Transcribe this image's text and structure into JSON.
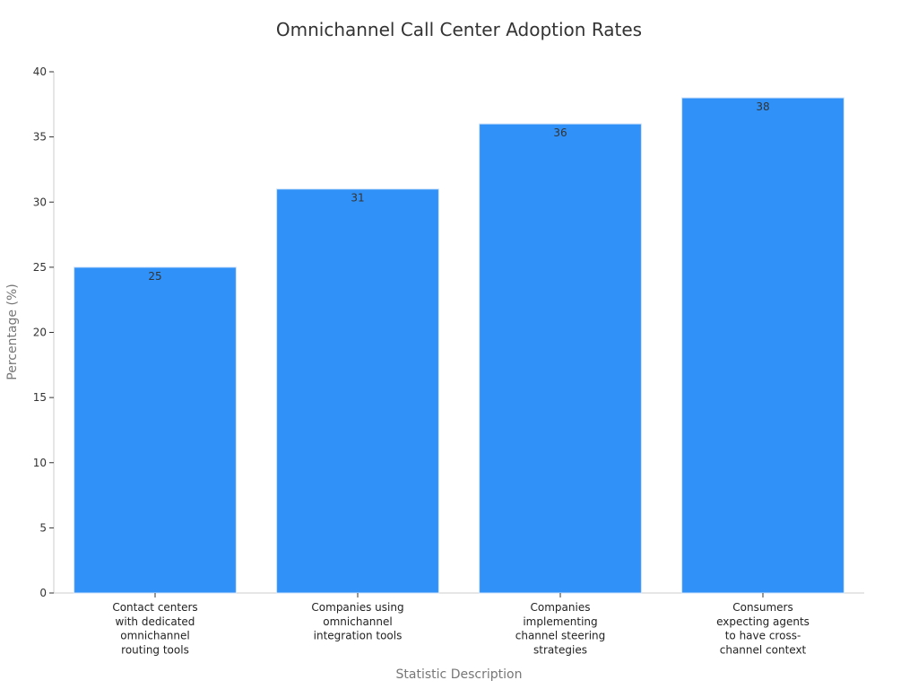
{
  "chart_data": {
    "type": "bar",
    "title": "Omnichannel Call Center Adoption Rates",
    "xlabel": "Statistic Description",
    "ylabel": "Percentage (%)",
    "ylim": [
      0,
      40
    ],
    "yticks": [
      0,
      5,
      10,
      15,
      20,
      25,
      30,
      35,
      40
    ],
    "categories": [
      [
        "Contact centers",
        "with dedicated",
        "omnichannel",
        "routing tools"
      ],
      [
        "Companies using",
        "omnichannel",
        "integration tools"
      ],
      [
        "Companies",
        "implementing",
        "channel steering",
        "strategies"
      ],
      [
        "Consumers",
        "expecting agents",
        "to have cross-",
        "channel context"
      ]
    ],
    "values": [
      25,
      31,
      36,
      38
    ],
    "bar_color": "#3092f8",
    "grid": false,
    "legend": "none"
  }
}
